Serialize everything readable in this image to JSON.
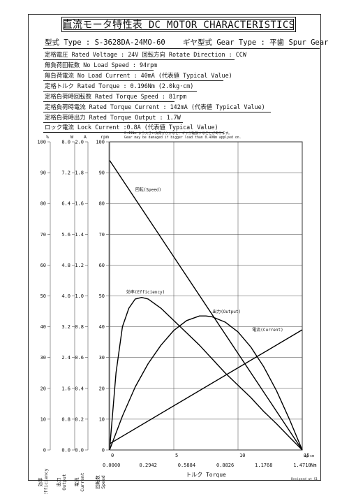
{
  "title": "直流モータ特性表 DC MOTOR CHARACTERISTICS",
  "model": {
    "type_label": "型式 Type : S-3628DA-24MO-60",
    "gear_label": "ギヤ型式 Gear Type : 平歯  Spur Gear"
  },
  "specs": [
    "定格電圧 Rated Voltage : 24V   回転方向 Rotate Direction : CCW",
    "無負荷回転数 No Load Speed : 94rpm",
    "無負荷電流 No Load Current : 40mA (代表値 Typical Value)",
    "定格トルク Rated Torque : 0.196Nm (2.0kg·cm)",
    "定格負荷時回転数 Rated Torque Speed : 81rpm",
    "定格負荷時電流 Rated Torque Current : 142mA (代表値 Typical Value)",
    "定格負荷時出力 Rated Torque Output : 1.7W",
    "ロック電流 Lock Current :0.8A (代表値 Typical Value)"
  ],
  "warning": {
    "jp": "0.49Nm より大きい負荷がかかると、ギヤが破損することがあります。",
    "en": "Gear may be damaged if bigger load than 0.49Nm applyed on."
  },
  "footer": "Designed at S1",
  "chart_data": {
    "type": "line",
    "xlabel": "トルク Torque",
    "x_unit_top": "kg·cm",
    "x_unit_bottom": "Nm",
    "x_ticks_kgcm": [
      "0",
      "5",
      "10",
      "15"
    ],
    "x_ticks_nm": [
      "0.0000",
      "0.2942",
      "0.5884",
      "0.8826",
      "1.1768",
      "1.4710"
    ],
    "xlim_kgcm": [
      0,
      15
    ],
    "y_scales": [
      {
        "name": "効率 Efficiency",
        "unit": "%",
        "ticks": [
          "100",
          "90",
          "80",
          "70",
          "60",
          "50",
          "40",
          "30",
          "20",
          "10",
          "0"
        ]
      },
      {
        "name": "出力 Output",
        "unit": "W",
        "ticks": [
          "8.0",
          "7.2",
          "6.4",
          "5.6",
          "4.8",
          "4.0",
          "3.2",
          "2.4",
          "1.6",
          "0.8",
          "0.0"
        ]
      },
      {
        "name": "電流 Current",
        "unit": "A",
        "ticks": [
          "2.0",
          "1.8",
          "1.6",
          "1.4",
          "1.2",
          "1.0",
          "0.8",
          "0.6",
          "0.4",
          "0.2",
          "0.0"
        ]
      },
      {
        "name": "回転数 Speed",
        "unit": "rpm",
        "ticks": [
          "100",
          "90",
          "80",
          "70",
          "60",
          "50",
          "40",
          "30",
          "20",
          "10",
          "0"
        ]
      }
    ],
    "ylim": [
      0,
      100
    ],
    "grid": true,
    "series": [
      {
        "name": "回転(Speed)",
        "x": [
          0,
          15
        ],
        "y": [
          94,
          0
        ]
      },
      {
        "name": "効率(Efficiency)",
        "x": [
          0,
          0.5,
          1,
          1.5,
          2,
          2.5,
          3,
          4,
          5,
          6,
          7,
          8,
          9,
          10,
          11,
          12,
          13,
          14,
          15
        ],
        "y": [
          0,
          25,
          40,
          46,
          49,
          49.5,
          49,
          46,
          42,
          38,
          34,
          29.5,
          25,
          21,
          17,
          12.5,
          8.5,
          4.2,
          0
        ]
      },
      {
        "name": "出力(Output)",
        "x": [
          0,
          1,
          2,
          3,
          4,
          5,
          6,
          7,
          7.5,
          8,
          9,
          10,
          11,
          12,
          13,
          14,
          15
        ],
        "y": [
          0,
          11,
          20.5,
          28,
          34,
          38.8,
          42,
          43.5,
          43.5,
          43.2,
          41.5,
          38.3,
          33.4,
          27,
          19.2,
          10,
          0
        ]
      },
      {
        "name": "電流(Current)",
        "x": [
          0,
          15
        ],
        "y": [
          2,
          39
        ]
      }
    ],
    "label_positions": {
      "回転(Speed)": [
        2,
        84
      ],
      "効率(Efficiency)": [
        1.3,
        50.8
      ],
      "出力(Output)": [
        8,
        44.5
      ],
      "電流(Current)": [
        11.1,
        38.5
      ]
    }
  }
}
